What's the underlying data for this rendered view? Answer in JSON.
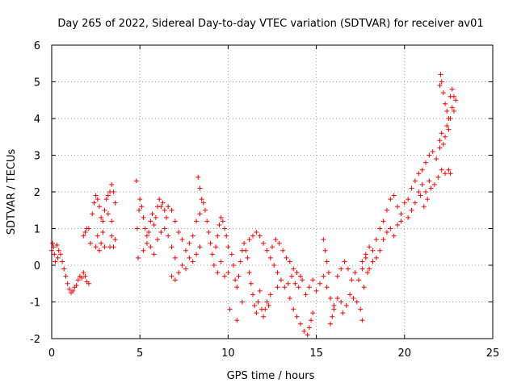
{
  "chart_data": {
    "type": "scatter",
    "title": "Day 265 of 2022, Sidereal Day-to-day VTEC variation (SDTVAR) for receiver av01",
    "xlabel": "GPS time / hours",
    "ylabel": "SDTVAR / TECUs",
    "xlim": [
      0,
      25
    ],
    "ylim": [
      -2,
      6
    ],
    "xticks": [
      0,
      5,
      10,
      15,
      20,
      25
    ],
    "yticks": [
      -2,
      -1,
      0,
      1,
      2,
      3,
      4,
      5,
      6
    ],
    "grid": true,
    "marker": "+",
    "color": "#ff0000",
    "series": [
      {
        "name": "SDTVAR",
        "points": [
          [
            0.0,
            0.4
          ],
          [
            0.05,
            0.6
          ],
          [
            0.1,
            0.5
          ],
          [
            0.15,
            0.3
          ],
          [
            0.2,
            0.1
          ],
          [
            0.3,
            0.55
          ],
          [
            0.35,
            0.2
          ],
          [
            0.4,
            0.4
          ],
          [
            0.5,
            0.3
          ],
          [
            0.6,
            0.1
          ],
          [
            0.7,
            -0.1
          ],
          [
            0.8,
            -0.3
          ],
          [
            0.9,
            -0.5
          ],
          [
            1.0,
            -0.65
          ],
          [
            1.1,
            -0.75
          ],
          [
            1.2,
            -0.7
          ],
          [
            1.3,
            -0.6
          ],
          [
            1.4,
            -0.55
          ],
          [
            1.5,
            -0.4
          ],
          [
            1.6,
            -0.3
          ],
          [
            1.7,
            -0.35
          ],
          [
            1.8,
            -0.2
          ],
          [
            1.9,
            -0.3
          ],
          [
            2.0,
            -0.45
          ],
          [
            2.1,
            -0.5
          ],
          [
            1.8,
            0.8
          ],
          [
            1.9,
            0.9
          ],
          [
            2.0,
            1.0
          ],
          [
            2.1,
            1.0
          ],
          [
            2.2,
            0.6
          ],
          [
            2.3,
            1.4
          ],
          [
            2.4,
            1.7
          ],
          [
            2.5,
            1.9
          ],
          [
            2.6,
            1.8
          ],
          [
            2.7,
            1.6
          ],
          [
            2.8,
            1.3
          ],
          [
            2.9,
            1.2
          ],
          [
            3.0,
            1.5
          ],
          [
            2.5,
            0.5
          ],
          [
            2.6,
            0.8
          ],
          [
            2.7,
            0.4
          ],
          [
            2.8,
            0.6
          ],
          [
            2.9,
            0.9
          ],
          [
            3.0,
            0.5
          ],
          [
            3.1,
            1.8
          ],
          [
            3.2,
            1.9
          ],
          [
            3.3,
            2.0
          ],
          [
            3.4,
            2.2
          ],
          [
            3.5,
            2.0
          ],
          [
            3.6,
            1.7
          ],
          [
            3.3,
            0.5
          ],
          [
            3.4,
            0.8
          ],
          [
            3.5,
            0.5
          ],
          [
            3.6,
            0.7
          ],
          [
            3.2,
            1.4
          ],
          [
            3.4,
            1.2
          ],
          [
            4.8,
            2.3
          ],
          [
            4.85,
            1.0
          ],
          [
            4.9,
            0.2
          ],
          [
            4.95,
            1.5
          ],
          [
            5.0,
            1.8
          ],
          [
            5.1,
            1.6
          ],
          [
            5.2,
            1.3
          ],
          [
            5.3,
            1.0
          ],
          [
            5.4,
            0.8
          ],
          [
            5.5,
            0.9
          ],
          [
            5.6,
            1.2
          ],
          [
            5.7,
            1.4
          ],
          [
            5.8,
            1.1
          ],
          [
            5.9,
            1.3
          ],
          [
            6.0,
            1.6
          ],
          [
            6.1,
            1.8
          ],
          [
            6.2,
            1.6
          ],
          [
            6.3,
            1.7
          ],
          [
            6.4,
            1.5
          ],
          [
            6.5,
            1.3
          ],
          [
            5.2,
            0.4
          ],
          [
            5.4,
            0.6
          ],
          [
            5.6,
            0.5
          ],
          [
            5.8,
            0.3
          ],
          [
            6.0,
            0.7
          ],
          [
            6.2,
            0.9
          ],
          [
            6.4,
            1.0
          ],
          [
            6.6,
            0.8
          ],
          [
            6.8,
            0.5
          ],
          [
            7.0,
            0.2
          ],
          [
            6.6,
            1.6
          ],
          [
            6.8,
            1.5
          ],
          [
            7.0,
            1.2
          ],
          [
            7.2,
            0.9
          ],
          [
            7.4,
            0.7
          ],
          [
            7.6,
            0.4
          ],
          [
            7.8,
            0.6
          ],
          [
            8.0,
            0.8
          ],
          [
            8.2,
            1.2
          ],
          [
            8.4,
            1.4
          ],
          [
            6.8,
            -0.3
          ],
          [
            7.0,
            -0.4
          ],
          [
            7.2,
            -0.2
          ],
          [
            7.4,
            0.0
          ],
          [
            7.6,
            -0.1
          ],
          [
            7.8,
            0.2
          ],
          [
            8.0,
            0.1
          ],
          [
            8.2,
            0.3
          ],
          [
            8.4,
            0.5
          ],
          [
            8.3,
            2.4
          ],
          [
            8.4,
            2.1
          ],
          [
            8.5,
            1.8
          ],
          [
            8.6,
            1.7
          ],
          [
            8.7,
            1.5
          ],
          [
            8.8,
            1.2
          ],
          [
            8.9,
            0.9
          ],
          [
            9.0,
            0.6
          ],
          [
            9.1,
            0.3
          ],
          [
            9.2,
            0.0
          ],
          [
            9.3,
            0.5
          ],
          [
            9.4,
            0.8
          ],
          [
            9.5,
            1.1
          ],
          [
            9.6,
            1.3
          ],
          [
            9.7,
            1.2
          ],
          [
            9.8,
            1.0
          ],
          [
            9.9,
            0.8
          ],
          [
            10.0,
            0.5
          ],
          [
            9.4,
            -0.2
          ],
          [
            9.6,
            0.1
          ],
          [
            9.8,
            -0.3
          ],
          [
            10.0,
            -0.2
          ],
          [
            10.1,
            -1.2
          ],
          [
            10.2,
            0.3
          ],
          [
            10.3,
            0.0
          ],
          [
            10.4,
            -0.4
          ],
          [
            10.5,
            -0.6
          ],
          [
            10.6,
            -0.3
          ],
          [
            10.7,
            0.1
          ],
          [
            10.8,
            0.4
          ],
          [
            10.9,
            0.6
          ],
          [
            11.0,
            0.4
          ],
          [
            11.1,
            0.2
          ],
          [
            11.2,
            -0.2
          ],
          [
            11.3,
            -0.5
          ],
          [
            11.4,
            -0.8
          ],
          [
            11.5,
            -1.1
          ],
          [
            11.6,
            -1.3
          ],
          [
            11.7,
            -1.0
          ],
          [
            11.8,
            -0.7
          ],
          [
            11.9,
            -1.2
          ],
          [
            12.0,
            -1.4
          ],
          [
            12.1,
            -1.2
          ],
          [
            12.2,
            -1.0
          ],
          [
            12.3,
            -1.1
          ],
          [
            12.4,
            -0.8
          ],
          [
            10.8,
            -1.0
          ],
          [
            10.5,
            -1.5
          ],
          [
            11.2,
            0.7
          ],
          [
            11.4,
            0.8
          ],
          [
            11.6,
            0.9
          ],
          [
            11.8,
            0.8
          ],
          [
            12.0,
            0.6
          ],
          [
            12.2,
            0.4
          ],
          [
            12.4,
            0.2
          ],
          [
            12.6,
            0.0
          ],
          [
            12.8,
            -0.2
          ],
          [
            12.5,
            0.5
          ],
          [
            12.7,
            0.7
          ],
          [
            12.9,
            0.6
          ],
          [
            13.1,
            0.4
          ],
          [
            13.3,
            0.2
          ],
          [
            13.5,
            0.1
          ],
          [
            13.7,
            -0.1
          ],
          [
            13.9,
            -0.2
          ],
          [
            14.1,
            -0.3
          ],
          [
            12.8,
            -0.6
          ],
          [
            13.0,
            -0.4
          ],
          [
            13.2,
            -0.6
          ],
          [
            13.4,
            -0.5
          ],
          [
            13.6,
            -0.3
          ],
          [
            13.8,
            -0.5
          ],
          [
            14.0,
            -0.6
          ],
          [
            14.2,
            -0.4
          ],
          [
            13.5,
            -0.9
          ],
          [
            13.7,
            -1.2
          ],
          [
            13.9,
            -1.4
          ],
          [
            14.1,
            -1.6
          ],
          [
            14.3,
            -1.8
          ],
          [
            14.5,
            -1.9
          ],
          [
            14.6,
            -1.7
          ],
          [
            14.7,
            -1.5
          ],
          [
            14.8,
            -1.3
          ],
          [
            14.4,
            -0.8
          ],
          [
            14.6,
            -0.6
          ],
          [
            14.8,
            -0.4
          ],
          [
            15.0,
            -0.7
          ],
          [
            15.2,
            -0.5
          ],
          [
            15.4,
            -0.3
          ],
          [
            15.6,
            -0.6
          ],
          [
            15.8,
            -0.9
          ],
          [
            16.0,
            -1.1
          ],
          [
            15.4,
            0.7
          ],
          [
            15.5,
            0.4
          ],
          [
            15.6,
            0.1
          ],
          [
            15.7,
            -0.2
          ],
          [
            15.8,
            -1.6
          ],
          [
            15.9,
            -1.4
          ],
          [
            16.0,
            -1.2
          ],
          [
            16.2,
            -0.9
          ],
          [
            16.4,
            -1.0
          ],
          [
            16.2,
            -0.3
          ],
          [
            16.4,
            -0.1
          ],
          [
            16.6,
            0.1
          ],
          [
            16.8,
            -0.1
          ],
          [
            17.0,
            -0.4
          ],
          [
            17.2,
            -0.2
          ],
          [
            17.4,
            -0.4
          ],
          [
            17.6,
            -0.1
          ],
          [
            17.8,
            0.2
          ],
          [
            16.5,
            -1.3
          ],
          [
            16.7,
            -1.1
          ],
          [
            16.9,
            -0.8
          ],
          [
            17.1,
            -0.9
          ],
          [
            17.3,
            -1.0
          ],
          [
            17.5,
            -1.2
          ],
          [
            17.6,
            -1.5
          ],
          [
            17.7,
            -0.6
          ],
          [
            17.9,
            -0.2
          ],
          [
            17.6,
            0.1
          ],
          [
            17.8,
            0.3
          ],
          [
            18.0,
            0.5
          ],
          [
            18.2,
            0.4
          ],
          [
            18.4,
            0.7
          ],
          [
            18.6,
            1.0
          ],
          [
            18.8,
            1.2
          ],
          [
            19.0,
            1.5
          ],
          [
            19.2,
            1.8
          ],
          [
            19.4,
            1.9
          ],
          [
            18.0,
            -0.1
          ],
          [
            18.2,
            0.1
          ],
          [
            18.4,
            0.2
          ],
          [
            18.6,
            0.4
          ],
          [
            18.8,
            0.7
          ],
          [
            19.0,
            0.9
          ],
          [
            19.2,
            1.0
          ],
          [
            19.4,
            0.8
          ],
          [
            19.6,
            1.1
          ],
          [
            19.8,
            1.2
          ],
          [
            19.6,
            1.6
          ],
          [
            19.8,
            1.4
          ],
          [
            20.0,
            1.7
          ],
          [
            20.2,
            1.8
          ],
          [
            20.4,
            2.1
          ],
          [
            20.6,
            2.3
          ],
          [
            20.8,
            2.5
          ],
          [
            21.0,
            2.2
          ],
          [
            21.2,
            2.0
          ],
          [
            21.4,
            2.3
          ],
          [
            20.2,
            1.3
          ],
          [
            20.4,
            1.5
          ],
          [
            20.6,
            1.7
          ],
          [
            20.8,
            2.0
          ],
          [
            21.0,
            2.6
          ],
          [
            21.2,
            2.8
          ],
          [
            21.4,
            3.0
          ],
          [
            21.6,
            3.1
          ],
          [
            21.8,
            2.9
          ],
          [
            22.0,
            3.2
          ],
          [
            20.9,
            1.9
          ],
          [
            21.1,
            1.6
          ],
          [
            21.3,
            1.8
          ],
          [
            21.5,
            2.1
          ],
          [
            21.7,
            2.2
          ],
          [
            21.9,
            2.4
          ],
          [
            22.1,
            2.6
          ],
          [
            22.3,
            2.5
          ],
          [
            22.5,
            2.6
          ],
          [
            22.6,
            2.5
          ],
          [
            22.0,
            3.4
          ],
          [
            22.1,
            3.6
          ],
          [
            22.2,
            3.3
          ],
          [
            22.3,
            3.5
          ],
          [
            22.4,
            3.8
          ],
          [
            22.5,
            3.7
          ],
          [
            22.6,
            4.0
          ],
          [
            22.7,
            4.3
          ],
          [
            22.8,
            4.2
          ],
          [
            22.9,
            4.5
          ],
          [
            22.0,
            4.9
          ],
          [
            22.05,
            5.2
          ],
          [
            22.1,
            5.0
          ],
          [
            22.2,
            4.7
          ],
          [
            22.3,
            4.4
          ],
          [
            22.4,
            4.2
          ],
          [
            22.5,
            4.0
          ],
          [
            22.6,
            4.6
          ],
          [
            22.7,
            4.8
          ],
          [
            22.8,
            4.6
          ]
        ]
      }
    ]
  }
}
